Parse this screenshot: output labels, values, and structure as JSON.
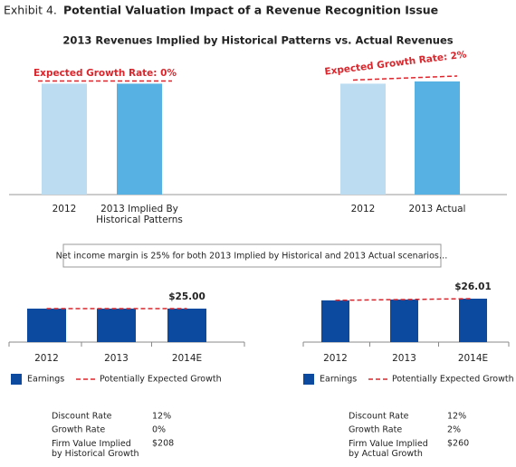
{
  "header": {
    "label": "Exhibit 4.",
    "title": "Potential Valuation Impact of a Revenue Recognition Issue"
  },
  "chart_data": [
    {
      "type": "bar",
      "title": "2013 Revenues Implied by Historical Patterns vs. Actual Revenues",
      "categories": [
        "2012",
        "2013 Implied By\nHistorical Patterns",
        "2012",
        "2013 Actual"
      ],
      "values": [
        100,
        100,
        100,
        102
      ],
      "colors": [
        "#bcdcf2",
        "#57b1e3",
        "#bcdcf2",
        "#57b1e3"
      ],
      "annotations": [
        "Expected Growth Rate: 0%",
        "Expected Growth Rate: 2%"
      ],
      "annotation_color": "#d9262c"
    },
    {
      "type": "bar",
      "categories": [
        "2012",
        "2013",
        "2014E"
      ],
      "series": [
        {
          "name": "Earnings",
          "color": "#0b4a9e",
          "values": [
            25,
            25,
            25
          ],
          "value_labels": [
            null,
            null,
            "$25.00"
          ]
        },
        {
          "name": "Potentially Expected Growth",
          "color": "#d9262c",
          "type": "line",
          "values": [
            25,
            25,
            25
          ]
        }
      ]
    },
    {
      "type": "bar",
      "categories": [
        "2012",
        "2013",
        "2014E"
      ],
      "series": [
        {
          "name": "Earnings",
          "color": "#0b4a9e",
          "values": [
            25,
            25.5,
            26.01
          ],
          "value_labels": [
            null,
            null,
            "$26.01"
          ]
        },
        {
          "name": "Potentially Expected Growth",
          "color": "#d9262c",
          "type": "line",
          "values": [
            25,
            25.5,
            26.01
          ]
        }
      ]
    }
  ],
  "note": "Net income margin is 25% for both 2013 Implied by Historical and 2013 Actual scenarios…",
  "tables": [
    {
      "rows": [
        [
          "Discount Rate",
          "12%"
        ],
        [
          "Growth Rate",
          "0%"
        ],
        [
          "Firm Value Implied\nby Historical Growth",
          "$208"
        ]
      ]
    },
    {
      "rows": [
        [
          "Discount Rate",
          "12%"
        ],
        [
          "Growth Rate",
          "2%"
        ],
        [
          "Firm Value Implied\nby Actual Growth",
          "$260"
        ]
      ]
    }
  ]
}
